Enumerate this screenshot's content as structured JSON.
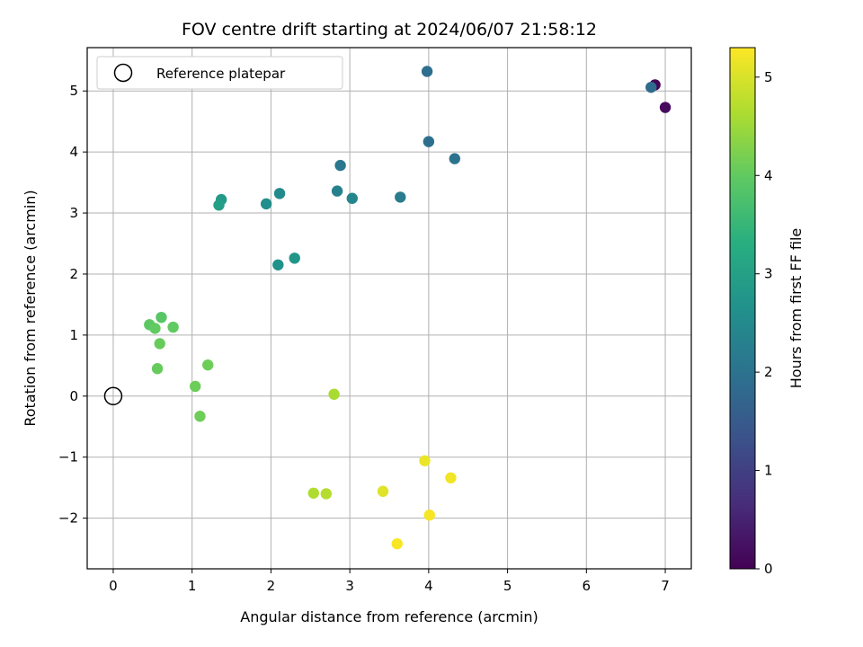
{
  "chart_data": {
    "type": "scatter",
    "title": "FOV centre drift starting at 2024/06/07 21:58:12",
    "xlabel": "Angular distance from reference (arcmin)",
    "ylabel": "Rotation from reference (arcmin)",
    "xlim": [
      -0.33,
      7.33
    ],
    "ylim": [
      -2.83,
      5.71
    ],
    "xticks": [
      0,
      1,
      2,
      3,
      4,
      5,
      6,
      7
    ],
    "yticks": [
      -2,
      -1,
      0,
      1,
      2,
      3,
      4,
      5
    ],
    "grid": true,
    "legend": {
      "placement": "upper-left",
      "entries": [
        "Reference platepar"
      ]
    },
    "reference_point": {
      "x": 0,
      "y": 0,
      "label": "Reference platepar"
    },
    "colorbar": {
      "label": "Hours from first FF file",
      "colormap": "viridis",
      "range": [
        0,
        5.3
      ],
      "ticks": [
        0,
        1,
        2,
        3,
        4,
        5
      ]
    },
    "points": [
      {
        "x": 6.87,
        "y": 5.1,
        "c": 0.05
      },
      {
        "x": 7.0,
        "y": 4.73,
        "c": 0.15
      },
      {
        "x": 6.82,
        "y": 5.06,
        "c": 1.85
      },
      {
        "x": 3.98,
        "y": 5.32,
        "c": 1.9
      },
      {
        "x": 4.0,
        "y": 4.17,
        "c": 1.95
      },
      {
        "x": 4.33,
        "y": 3.89,
        "c": 2.0
      },
      {
        "x": 2.88,
        "y": 3.78,
        "c": 2.1
      },
      {
        "x": 3.64,
        "y": 3.26,
        "c": 2.2
      },
      {
        "x": 2.84,
        "y": 3.36,
        "c": 2.3
      },
      {
        "x": 3.03,
        "y": 3.24,
        "c": 2.4
      },
      {
        "x": 2.11,
        "y": 3.32,
        "c": 2.5
      },
      {
        "x": 1.94,
        "y": 3.15,
        "c": 2.6
      },
      {
        "x": 2.09,
        "y": 2.15,
        "c": 2.65
      },
      {
        "x": 2.3,
        "y": 2.26,
        "c": 2.75
      },
      {
        "x": 1.37,
        "y": 3.22,
        "c": 2.85
      },
      {
        "x": 1.34,
        "y": 3.13,
        "c": 2.95
      },
      {
        "x": 0.61,
        "y": 1.29,
        "c": 3.9
      },
      {
        "x": 0.46,
        "y": 1.17,
        "c": 3.95
      },
      {
        "x": 0.53,
        "y": 1.11,
        "c": 4.0
      },
      {
        "x": 0.76,
        "y": 1.13,
        "c": 4.0
      },
      {
        "x": 0.59,
        "y": 0.86,
        "c": 4.05
      },
      {
        "x": 0.56,
        "y": 0.45,
        "c": 4.05
      },
      {
        "x": 1.2,
        "y": 0.51,
        "c": 4.1
      },
      {
        "x": 1.04,
        "y": 0.16,
        "c": 4.1
      },
      {
        "x": 1.1,
        "y": -0.33,
        "c": 4.1
      },
      {
        "x": 2.8,
        "y": 0.03,
        "c": 4.6
      },
      {
        "x": 2.54,
        "y": -1.59,
        "c": 4.65
      },
      {
        "x": 2.7,
        "y": -1.6,
        "c": 4.7
      },
      {
        "x": 3.42,
        "y": -1.56,
        "c": 5.05
      },
      {
        "x": 3.95,
        "y": -1.06,
        "c": 5.15
      },
      {
        "x": 4.28,
        "y": -1.34,
        "c": 5.2
      },
      {
        "x": 4.01,
        "y": -1.95,
        "c": 5.25
      },
      {
        "x": 3.6,
        "y": -2.42,
        "c": 5.25
      }
    ]
  }
}
